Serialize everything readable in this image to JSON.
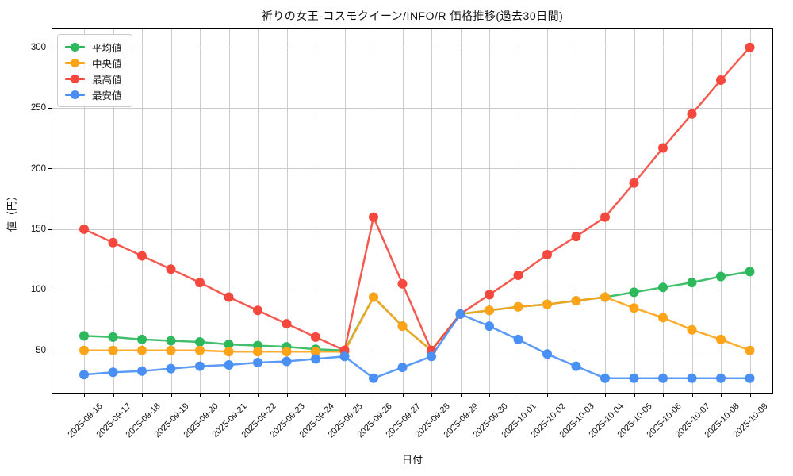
{
  "chart_data": {
    "type": "line",
    "title": "祈りの女王-コスモクイーン/INFO/R 価格推移(過去30日間)",
    "xlabel": "日付",
    "ylabel": "値（円）",
    "x": [
      "2025-09-16",
      "2025-09-17",
      "2025-09-18",
      "2025-09-19",
      "2025-09-20",
      "2025-09-21",
      "2025-09-22",
      "2025-09-23",
      "2025-09-24",
      "2025-09-25",
      "2025-09-26",
      "2025-09-27",
      "2025-09-28",
      "2025-09-29",
      "2025-09-30",
      "2025-10-01",
      "2025-10-02",
      "2025-10-03",
      "2025-10-04",
      "2025-10-05",
      "2025-10-06",
      "2025-10-07",
      "2025-10-08",
      "2025-10-09"
    ],
    "series": [
      {
        "key": "avg",
        "name": "平均値",
        "color": "#2EB85C",
        "values": [
          62,
          61,
          59,
          58,
          57,
          55,
          54,
          53,
          51,
          50,
          94,
          70,
          50,
          80,
          83,
          86,
          88,
          91,
          94,
          98,
          102,
          106,
          111,
          115
        ]
      },
      {
        "key": "median",
        "name": "中央値",
        "color": "#FFA318",
        "values": [
          50,
          50,
          50,
          50,
          50,
          49,
          49,
          49,
          49,
          49,
          94,
          70,
          50,
          80,
          83,
          86,
          88,
          91,
          94,
          85,
          77,
          67,
          59,
          50
        ]
      },
      {
        "key": "max",
        "name": "最高値",
        "color": "#F4483E",
        "values": [
          150,
          139,
          128,
          117,
          106,
          94,
          83,
          72,
          61,
          50,
          160,
          105,
          50,
          80,
          96,
          112,
          129,
          144,
          160,
          188,
          217,
          245,
          273,
          300
        ]
      },
      {
        "key": "min",
        "name": "最安値",
        "color": "#4A90F4",
        "values": [
          30,
          32,
          33,
          35,
          37,
          38,
          40,
          41,
          43,
          45,
          27,
          36,
          45,
          80,
          70,
          59,
          47,
          37,
          27,
          27,
          27,
          27,
          27,
          27
        ]
      }
    ],
    "yticks": [
      50,
      100,
      150,
      200,
      250,
      300
    ],
    "ylim": [
      14,
      316
    ],
    "grid": true,
    "legend_position": "upper left",
    "grid_color": "#cccccc",
    "axis_color": "#000000"
  }
}
